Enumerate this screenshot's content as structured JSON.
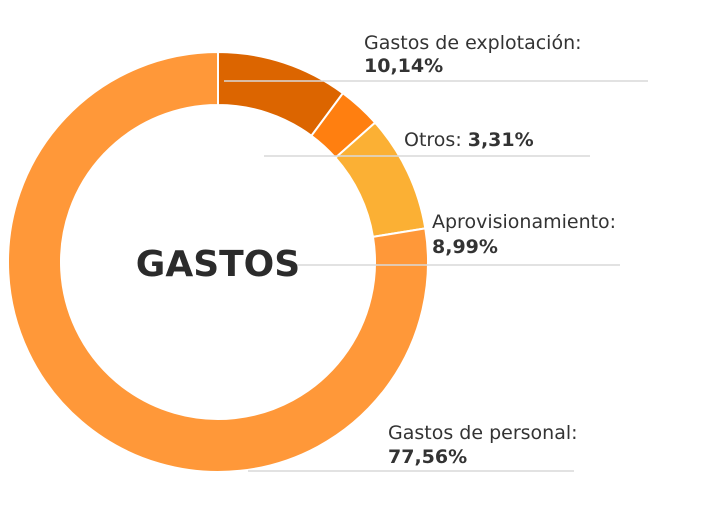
{
  "chart_data": {
    "type": "pie",
    "title": "GASTOS",
    "categories": [
      "Gastos de explotación",
      "Otros",
      "Aprovisionamiento",
      "Gastos de personal"
    ],
    "values": [
      10.14,
      3.31,
      8.99,
      77.56
    ],
    "value_labels": [
      "10,14%",
      "3,31%",
      "8,99%",
      "77,56%"
    ],
    "colors": [
      "#dc6500",
      "#ff7f10",
      "#fbb034",
      "#ff9839"
    ],
    "label_separator": ":",
    "donut": true
  }
}
